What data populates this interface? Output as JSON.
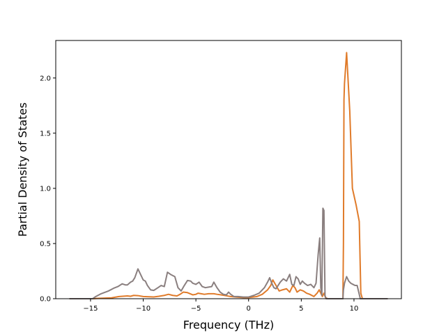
{
  "chart_data": {
    "type": "line",
    "title": "",
    "xlabel": "Frequency (THz)",
    "ylabel": "Partial Density of States",
    "xlim": [
      -18.3,
      14.5
    ],
    "ylim": [
      0,
      2.34
    ],
    "xticks": [
      -15,
      -10,
      -5,
      0,
      5,
      10
    ],
    "xtick_labels": [
      "−15",
      "−10",
      "−5",
      "0",
      "5",
      "10"
    ],
    "yticks": [
      0,
      0.5,
      1.0,
      1.5,
      2.0
    ],
    "ytick_labels": [
      "0.0",
      "0.5",
      "1.0",
      "1.5",
      "2.0"
    ],
    "grid": false,
    "legend": "none",
    "series": [
      {
        "color": "#e07b2a",
        "x": [
          -17.0,
          -14.8,
          -14.3,
          -13.0,
          -12.3,
          -11.5,
          -11.2,
          -10.9,
          -10.5,
          -10.0,
          -9.6,
          -9.0,
          -8.5,
          -8.0,
          -7.6,
          -7.2,
          -6.8,
          -6.5,
          -6.2,
          -5.8,
          -5.3,
          -5.0,
          -4.8,
          -4.5,
          -4.2,
          -3.8,
          -3.3,
          -3.0,
          -2.6,
          -2.3,
          -2.0,
          -1.7,
          -1.2,
          -0.5,
          0.0,
          0.8,
          1.3,
          1.8,
          2.1,
          2.3,
          2.6,
          2.9,
          3.2,
          3.6,
          3.9,
          4.2,
          4.4,
          4.6,
          4.9,
          5.2,
          5.5,
          5.8,
          6.2,
          6.5,
          6.7,
          6.9,
          7.0,
          7.15,
          7.3,
          7.5,
          7.7,
          8.0,
          8.4,
          8.7,
          8.95,
          9.0,
          9.05,
          9.1,
          9.3,
          9.6,
          9.85,
          10.2,
          10.5,
          10.65,
          10.8,
          11.5,
          12.5,
          13.2
        ],
        "values": [
          0.0,
          0.0,
          0.003,
          0.008,
          0.02,
          0.025,
          0.022,
          0.03,
          0.028,
          0.02,
          0.018,
          0.016,
          0.022,
          0.03,
          0.04,
          0.03,
          0.025,
          0.04,
          0.06,
          0.055,
          0.035,
          0.04,
          0.05,
          0.045,
          0.04,
          0.045,
          0.045,
          0.04,
          0.035,
          0.03,
          0.025,
          0.02,
          0.015,
          0.01,
          0.01,
          0.02,
          0.04,
          0.08,
          0.12,
          0.17,
          0.12,
          0.07,
          0.08,
          0.09,
          0.06,
          0.12,
          0.1,
          0.06,
          0.08,
          0.07,
          0.05,
          0.04,
          0.02,
          0.05,
          0.08,
          0.04,
          0.02,
          0.05,
          0.01,
          0.0,
          0.0,
          0.0,
          0.0,
          0.0,
          0.0,
          0.5,
          1.8,
          1.95,
          2.23,
          1.7,
          1.0,
          0.85,
          0.7,
          0.05,
          0.0,
          0.0,
          0.0,
          0.0
        ]
      },
      {
        "color": "#8a7f7f",
        "x": [
          -17.0,
          -14.8,
          -14.5,
          -14.0,
          -13.3,
          -12.8,
          -12.4,
          -12.0,
          -11.7,
          -11.5,
          -11.2,
          -11.0,
          -10.8,
          -10.5,
          -10.2,
          -10.0,
          -9.8,
          -9.6,
          -9.3,
          -9.0,
          -8.6,
          -8.3,
          -8.0,
          -7.7,
          -7.4,
          -7.0,
          -6.7,
          -6.4,
          -6.1,
          -5.8,
          -5.5,
          -5.3,
          -5.0,
          -4.7,
          -4.4,
          -4.1,
          -3.8,
          -3.5,
          -3.3,
          -3.0,
          -2.7,
          -2.4,
          -2.1,
          -1.9,
          -1.7,
          -1.4,
          -1.0,
          -0.5,
          0.0,
          0.5,
          1.0,
          1.5,
          1.8,
          2.0,
          2.2,
          2.4,
          2.6,
          2.8,
          3.0,
          3.3,
          3.6,
          3.9,
          4.1,
          4.3,
          4.5,
          4.7,
          4.9,
          5.1,
          5.3,
          5.6,
          5.9,
          6.2,
          6.4,
          6.6,
          6.75,
          6.85,
          6.95,
          7.05,
          7.15,
          7.25,
          7.35,
          7.45,
          7.6,
          7.8,
          8.0,
          8.3,
          8.6,
          8.8,
          8.95,
          9.0,
          9.1,
          9.3,
          9.5,
          9.7,
          9.9,
          10.1,
          10.3,
          10.45,
          10.6,
          10.8,
          11.5,
          12.5,
          13.2
        ],
        "values": [
          0.0,
          0.0,
          0.02,
          0.045,
          0.07,
          0.095,
          0.11,
          0.135,
          0.125,
          0.125,
          0.15,
          0.16,
          0.19,
          0.27,
          0.21,
          0.17,
          0.16,
          0.12,
          0.08,
          0.075,
          0.1,
          0.12,
          0.11,
          0.24,
          0.22,
          0.2,
          0.1,
          0.07,
          0.12,
          0.165,
          0.16,
          0.14,
          0.13,
          0.15,
          0.11,
          0.1,
          0.105,
          0.11,
          0.15,
          0.1,
          0.06,
          0.04,
          0.035,
          0.06,
          0.04,
          0.02,
          0.02,
          0.015,
          0.015,
          0.03,
          0.05,
          0.1,
          0.15,
          0.19,
          0.14,
          0.1,
          0.09,
          0.12,
          0.15,
          0.18,
          0.16,
          0.22,
          0.13,
          0.12,
          0.2,
          0.18,
          0.13,
          0.16,
          0.14,
          0.12,
          0.13,
          0.1,
          0.14,
          0.4,
          0.55,
          0.1,
          0.03,
          0.82,
          0.8,
          0.03,
          0.0,
          0.0,
          0.0,
          0.0,
          0.0,
          0.0,
          0.0,
          0.0,
          0.0,
          0.08,
          0.14,
          0.2,
          0.16,
          0.14,
          0.13,
          0.12,
          0.12,
          0.06,
          0.0,
          0.0,
          0.0,
          0.0,
          0.0
        ]
      }
    ]
  }
}
